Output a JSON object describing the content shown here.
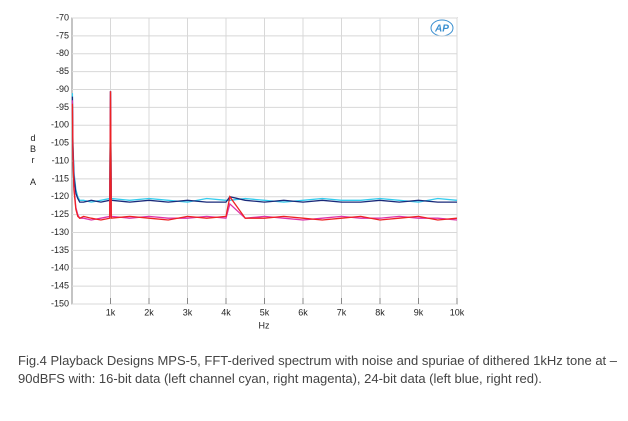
{
  "chart_data": {
    "type": "line",
    "logo": "AP",
    "xlabel": "Hz",
    "ylabel": "dBr A",
    "caption": "Fig.4 Playback Designs MPS-5, FFT-derived spectrum with noise and spuriae of dithered 1kHz tone at –90dBFS with: 16-bit data (left channel cyan, right magenta), 24-bit data (left blue, right red).",
    "xlim": [
      0,
      10000
    ],
    "ylim": [
      -150,
      -70
    ],
    "xticks": [
      {
        "value": 1000,
        "label": "1k"
      },
      {
        "value": 2000,
        "label": "2k"
      },
      {
        "value": 3000,
        "label": "3k"
      },
      {
        "value": 4000,
        "label": "4k"
      },
      {
        "value": 5000,
        "label": "5k"
      },
      {
        "value": 6000,
        "label": "6k"
      },
      {
        "value": 7000,
        "label": "7k"
      },
      {
        "value": 8000,
        "label": "8k"
      },
      {
        "value": 9000,
        "label": "9k"
      },
      {
        "value": 10000,
        "label": "10k"
      }
    ],
    "yticks": [
      -70,
      -75,
      -80,
      -85,
      -90,
      -95,
      -100,
      -105,
      -110,
      -115,
      -120,
      -125,
      -130,
      -135,
      -140,
      -145,
      -150
    ],
    "grid": true,
    "x": [
      10,
      25,
      50,
      100,
      150,
      200,
      300,
      500,
      750,
      980,
      1000,
      1020,
      1500,
      2000,
      2500,
      3000,
      3500,
      4000,
      4100,
      4500,
      5000,
      5500,
      6000,
      6500,
      7000,
      7500,
      8000,
      8500,
      9000,
      9500,
      10000
    ],
    "series": [
      {
        "name": "16-bit left",
        "color": "#33ccee",
        "values": [
          -91,
          -105,
          -113,
          -118,
          -120,
          -121,
          -121,
          -121.5,
          -121,
          -120.5,
          -90.5,
          -120.5,
          -121,
          -120.5,
          -121,
          -121.5,
          -120.5,
          -121,
          -121,
          -120.5,
          -121,
          -121.5,
          -121,
          -120.5,
          -121,
          -121,
          -120.5,
          -121,
          -121.5,
          -120.5,
          -121
        ]
      },
      {
        "name": "24-bit left",
        "color": "#1a2a7a",
        "values": [
          -92,
          -106,
          -114,
          -119,
          -120.5,
          -121.5,
          -121.5,
          -121,
          -121.5,
          -121,
          -90.5,
          -121,
          -121.5,
          -121,
          -121.5,
          -121,
          -121.5,
          -121.5,
          -120,
          -121,
          -121.5,
          -121,
          -121.5,
          -121,
          -121.5,
          -121.5,
          -121,
          -121.5,
          -121,
          -121.5,
          -121.5
        ]
      },
      {
        "name": "16-bit right",
        "color": "#dd33aa",
        "values": [
          -93,
          -108,
          -117,
          -123,
          -125,
          -126,
          -126,
          -126.5,
          -126,
          -125.5,
          -90.5,
          -125.5,
          -126,
          -125.5,
          -126,
          -126,
          -125.5,
          -126,
          -122,
          -126,
          -125.5,
          -126,
          -126.5,
          -126,
          -125.5,
          -126,
          -126,
          -125.5,
          -126,
          -126,
          -126.5
        ]
      },
      {
        "name": "24-bit right",
        "color": "#ee2222",
        "values": [
          -94,
          -109,
          -118,
          -123.5,
          -125.5,
          -126,
          -125.5,
          -126,
          -126.5,
          -126,
          -90.5,
          -126,
          -125.5,
          -126,
          -126.5,
          -125.5,
          -126,
          -125.5,
          -120,
          -126,
          -126,
          -125.5,
          -126,
          -126.5,
          -126,
          -125.5,
          -126.5,
          -126,
          -125.5,
          -126.5,
          -126
        ]
      }
    ]
  }
}
